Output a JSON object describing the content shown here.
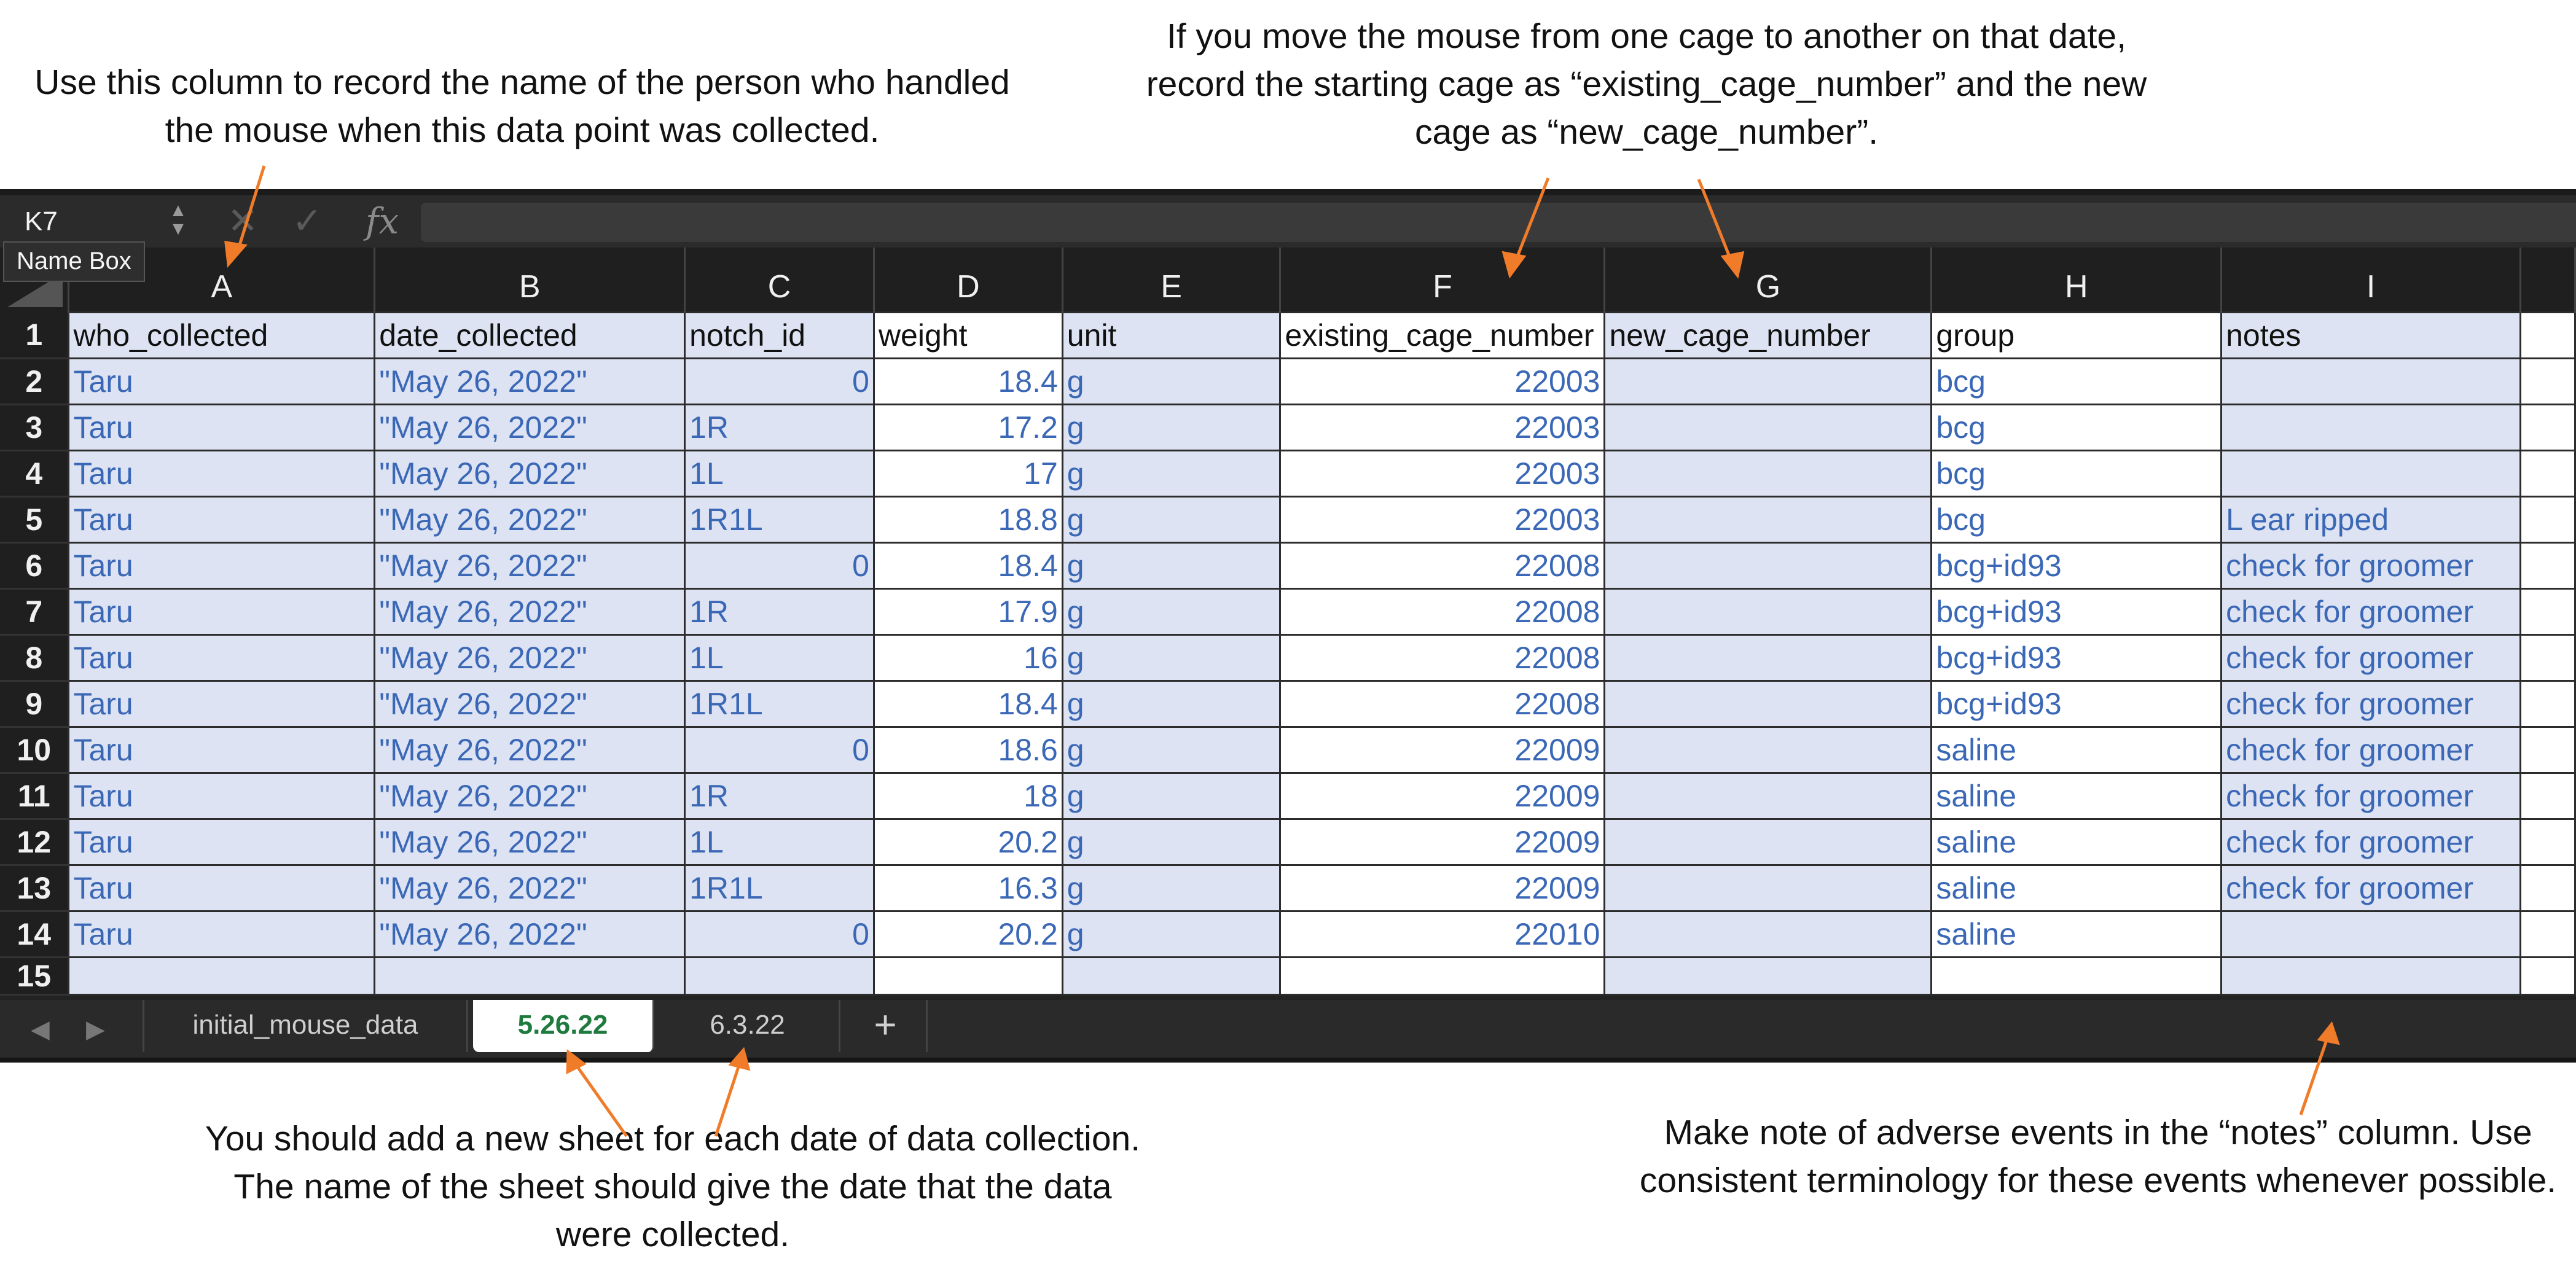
{
  "annotations": {
    "top_left": "Use this column to record the name of the person who handled the mouse when this data point was collected.",
    "top_right": "If you move the mouse from one cage to another on that date, record the starting cage as “existing_cage_number” and the new cage as “new_cage_number”.",
    "bottom_left": "You should add a new sheet for each date of data collection. The name of the sheet should give the date that the data were collected.",
    "bottom_right": "Make note of adverse events in the “notes” column. Use consistent terminology for these events whenever possible."
  },
  "formula_bar": {
    "name_box": "K7",
    "name_box_tooltip": "Name Box",
    "fx_label": "fx",
    "formula_value": ""
  },
  "columns": [
    "A",
    "B",
    "C",
    "D",
    "E",
    "F",
    "G",
    "H",
    "I"
  ],
  "header_row": [
    "who_collected",
    "date_collected",
    "notch_id",
    "weight",
    "unit",
    "existing_cage_number",
    "new_cage_number",
    "group",
    "notes"
  ],
  "rows": [
    {
      "n": "2",
      "cells": [
        "Taru",
        "\"May 26, 2022\"",
        "0",
        "18.4",
        "g",
        "22003",
        "",
        "bcg",
        ""
      ]
    },
    {
      "n": "3",
      "cells": [
        "Taru",
        "\"May 26, 2022\"",
        "1R",
        "17.2",
        "g",
        "22003",
        "",
        "bcg",
        ""
      ]
    },
    {
      "n": "4",
      "cells": [
        "Taru",
        "\"May 26, 2022\"",
        "1L",
        "17",
        "g",
        "22003",
        "",
        "bcg",
        ""
      ]
    },
    {
      "n": "5",
      "cells": [
        "Taru",
        "\"May 26, 2022\"",
        "1R1L",
        "18.8",
        "g",
        "22003",
        "",
        "bcg",
        "L ear ripped"
      ]
    },
    {
      "n": "6",
      "cells": [
        "Taru",
        "\"May 26, 2022\"",
        "0",
        "18.4",
        "g",
        "22008",
        "",
        "bcg+id93",
        "check for groomer"
      ]
    },
    {
      "n": "7",
      "cells": [
        "Taru",
        "\"May 26, 2022\"",
        "1R",
        "17.9",
        "g",
        "22008",
        "",
        "bcg+id93",
        "check for groomer"
      ]
    },
    {
      "n": "8",
      "cells": [
        "Taru",
        "\"May 26, 2022\"",
        "1L",
        "16",
        "g",
        "22008",
        "",
        "bcg+id93",
        "check for groomer"
      ]
    },
    {
      "n": "9",
      "cells": [
        "Taru",
        "\"May 26, 2022\"",
        "1R1L",
        "18.4",
        "g",
        "22008",
        "",
        "bcg+id93",
        "check for groomer"
      ]
    },
    {
      "n": "10",
      "cells": [
        "Taru",
        "\"May 26, 2022\"",
        "0",
        "18.6",
        "g",
        "22009",
        "",
        "saline",
        "check for groomer"
      ]
    },
    {
      "n": "11",
      "cells": [
        "Taru",
        "\"May 26, 2022\"",
        "1R",
        "18",
        "g",
        "22009",
        "",
        "saline",
        "check for groomer"
      ]
    },
    {
      "n": "12",
      "cells": [
        "Taru",
        "\"May 26, 2022\"",
        "1L",
        "20.2",
        "g",
        "22009",
        "",
        "saline",
        "check for groomer"
      ]
    },
    {
      "n": "13",
      "cells": [
        "Taru",
        "\"May 26, 2022\"",
        "1R1L",
        "16.3",
        "g",
        "22009",
        "",
        "saline",
        "check for groomer"
      ]
    },
    {
      "n": "14",
      "cells": [
        "Taru",
        "\"May 26, 2022\"",
        "0",
        "20.2",
        "g",
        "22010",
        "",
        "saline",
        ""
      ]
    }
  ],
  "partial_row_number": "15",
  "sheet_tabs": {
    "tabs": [
      "initial_mouse_data",
      "5.26.22",
      "6.3.22"
    ],
    "active": "5.26.22",
    "add_label": "+"
  },
  "colors": {
    "cell_text": "#3b68b6",
    "shade": "#dde3f2",
    "active_tab_text": "#1f7a3e",
    "arrow": "#f07c2a"
  }
}
